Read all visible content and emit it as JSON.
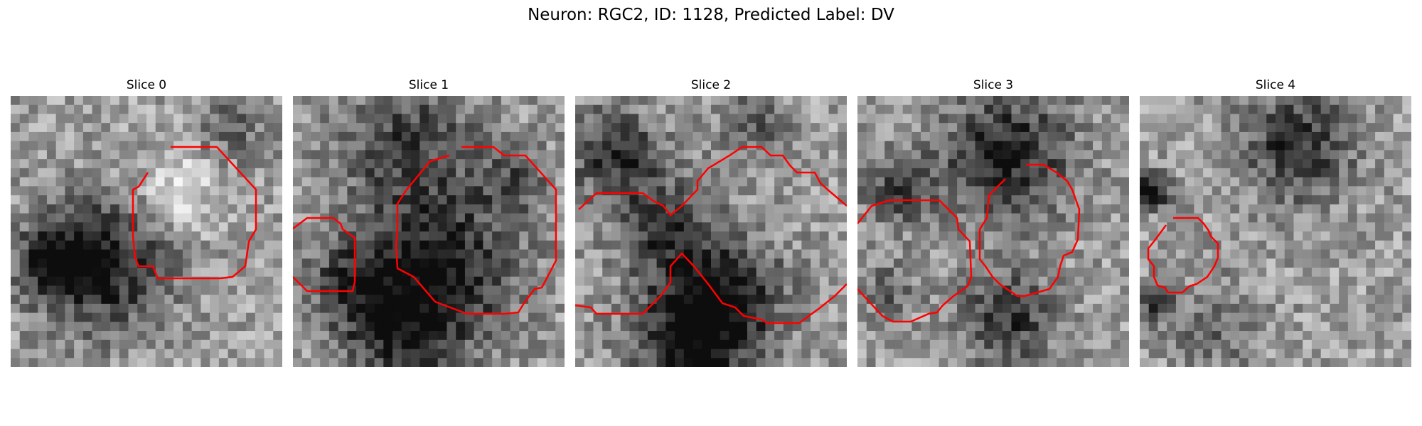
{
  "figure": {
    "title": "Neuron: RGC2, ID: 1128, Predicted Label: DV"
  },
  "panels": [
    {
      "title": "Slice 0"
    },
    {
      "title": "Slice 1"
    },
    {
      "title": "Slice 2"
    },
    {
      "title": "Slice 3"
    },
    {
      "title": "Slice 4"
    }
  ],
  "colors": {
    "contour": "#ff0000",
    "colormap": "gray"
  }
}
